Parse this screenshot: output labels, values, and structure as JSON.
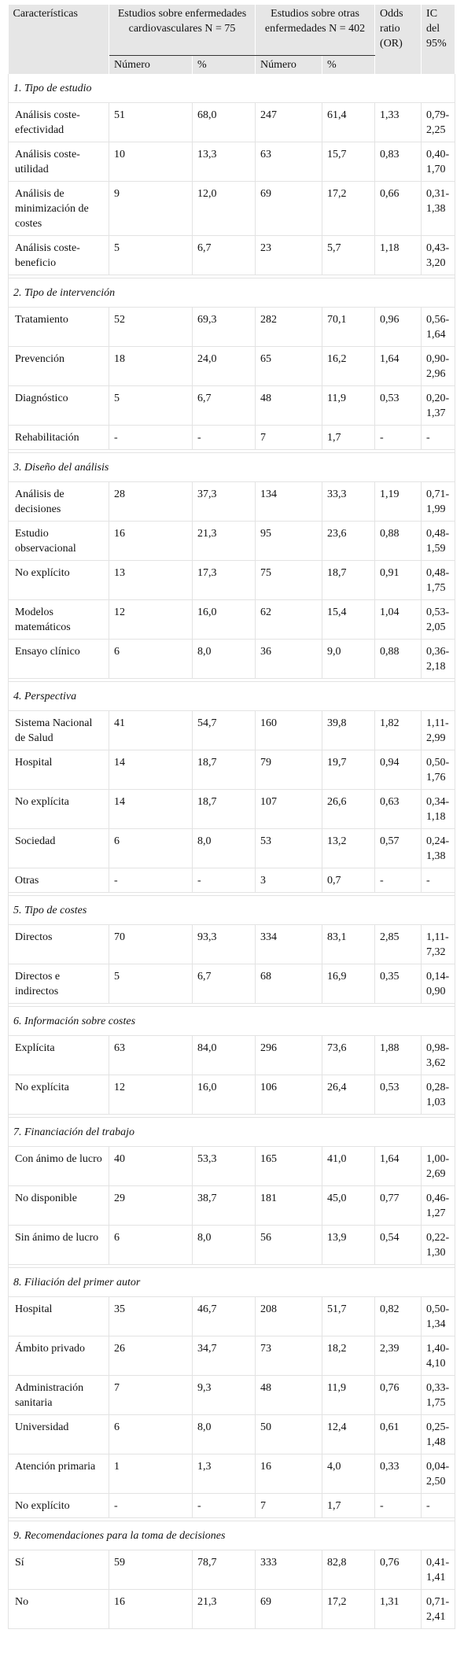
{
  "header": {
    "caracteristicas": "Características",
    "cardio_group": "Estudios sobre enfermedades cardiovasculares N = 75",
    "otras_group": "Estudios sobre otras enfermedades N = 402",
    "odds": "Odds ratio (OR)",
    "ic": "IC del 95%",
    "numero": "Número",
    "pct": "%"
  },
  "sections": [
    {
      "title": "1. Tipo de estudio",
      "rows": [
        [
          "Análisis coste-efectividad",
          "51",
          "68,0",
          "247",
          "61,4",
          "1,33",
          "0,79-2,25"
        ],
        [
          "Análisis coste-utilidad",
          "10",
          "13,3",
          "63",
          "15,7",
          "0,83",
          "0,40-1,70"
        ],
        [
          "Análisis de minimización de costes",
          "9",
          "12,0",
          "69",
          "17,2",
          "0,66",
          "0,31-1,38"
        ],
        [
          "Análisis coste-beneficio",
          "5",
          "6,7",
          "23",
          "5,7",
          "1,18",
          "0,43-3,20"
        ]
      ]
    },
    {
      "title": "2. Tipo de intervención",
      "rows": [
        [
          "Tratamiento",
          "52",
          "69,3",
          "282",
          "70,1",
          "0,96",
          "0,56-1,64"
        ],
        [
          "Prevención",
          "18",
          "24,0",
          "65",
          "16,2",
          "1,64",
          "0,90-2,96"
        ],
        [
          "Diagnóstico",
          "5",
          "6,7",
          "48",
          "11,9",
          "0,53",
          "0,20-1,37"
        ],
        [
          "Rehabilitación",
          "-",
          "-",
          "7",
          "1,7",
          "-",
          "-"
        ]
      ]
    },
    {
      "title": "3. Diseño del análisis",
      "rows": [
        [
          "Análisis de decisiones",
          "28",
          "37,3",
          "134",
          "33,3",
          "1,19",
          "0,71-1,99"
        ],
        [
          "Estudio observacional",
          "16",
          "21,3",
          "95",
          "23,6",
          "0,88",
          "0,48-1,59"
        ],
        [
          "No explícito",
          "13",
          "17,3",
          "75",
          "18,7",
          "0,91",
          "0,48-1,75"
        ],
        [
          "Modelos matemáticos",
          "12",
          "16,0",
          "62",
          "15,4",
          "1,04",
          "0,53-2,05"
        ],
        [
          "Ensayo clínico",
          "6",
          "8,0",
          "36",
          "9,0",
          "0,88",
          "0,36-2,18"
        ]
      ]
    },
    {
      "title": "4. Perspectiva",
      "rows": [
        [
          "Sistema Nacional de Salud",
          "41",
          "54,7",
          "160",
          "39,8",
          "1,82",
          "1,11-2,99"
        ],
        [
          "Hospital",
          "14",
          "18,7",
          "79",
          "19,7",
          "0,94",
          "0,50-1,76"
        ],
        [
          "No explícita",
          "14",
          "18,7",
          "107",
          "26,6",
          "0,63",
          "0,34-1,18"
        ],
        [
          "Sociedad",
          "6",
          "8,0",
          "53",
          "13,2",
          "0,57",
          "0,24-1,38"
        ],
        [
          "Otras",
          "-",
          "-",
          "3",
          "0,7",
          "-",
          "-"
        ]
      ]
    },
    {
      "title": "5. Tipo de costes",
      "rows": [
        [
          "Directos",
          "70",
          "93,3",
          "334",
          "83,1",
          "2,85",
          "1,11-7,32"
        ],
        [
          "Directos e indirectos",
          "5",
          "6,7",
          "68",
          "16,9",
          "0,35",
          "0,14-0,90"
        ]
      ]
    },
    {
      "title": "6. Información sobre costes",
      "rows": [
        [
          "Explícita",
          "63",
          "84,0",
          "296",
          "73,6",
          "1,88",
          "0,98-3,62"
        ],
        [
          "No explícita",
          "12",
          "16,0",
          "106",
          "26,4",
          "0,53",
          "0,28-1,03"
        ]
      ]
    },
    {
      "title": "7. Financiación del trabajo",
      "rows": [
        [
          "Con ánimo de lucro",
          "40",
          "53,3",
          "165",
          "41,0",
          "1,64",
          "1,00-2,69"
        ],
        [
          "No disponible",
          "29",
          "38,7",
          "181",
          "45,0",
          "0,77",
          "0,46-1,27"
        ],
        [
          "Sin ánimo de lucro",
          "6",
          "8,0",
          "56",
          "13,9",
          "0,54",
          "0,22-1,30"
        ]
      ]
    },
    {
      "title": "8. Filiación del primer autor",
      "rows": [
        [
          "Hospital",
          "35",
          "46,7",
          "208",
          "51,7",
          "0,82",
          "0,50-1,34"
        ],
        [
          "Ámbito privado",
          "26",
          "34,7",
          "73",
          "18,2",
          "2,39",
          "1,40-4,10"
        ],
        [
          "Administración sanitaria",
          "7",
          "9,3",
          "48",
          "11,9",
          "0,76",
          "0,33-1,75"
        ],
        [
          "Universidad",
          "6",
          "8,0",
          "50",
          "12,4",
          "0,61",
          "0,25-1,48"
        ],
        [
          "Atención primaria",
          "1",
          "1,3",
          "16",
          "4,0",
          "0,33",
          "0,04-2,50"
        ],
        [
          "No explícito",
          "-",
          "-",
          "7",
          "1,7",
          "-",
          "-"
        ]
      ]
    },
    {
      "title": "9. Recomendaciones para la toma de decisiones",
      "rows": [
        [
          "Sí",
          "59",
          "78,7",
          "333",
          "82,8",
          "0,76",
          "0,41-1,41"
        ],
        [
          "No",
          "16",
          "21,3",
          "69",
          "17,2",
          "1,31",
          "0,71-2,41"
        ]
      ]
    }
  ]
}
